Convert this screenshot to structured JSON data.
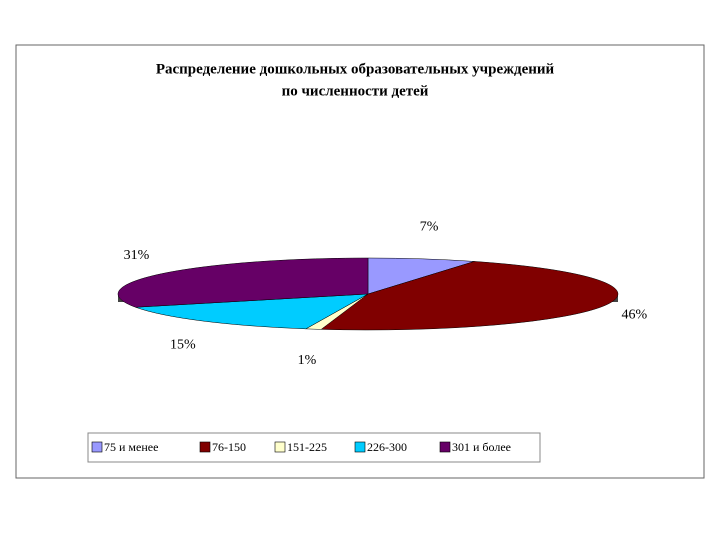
{
  "chart_data": {
    "type": "pie",
    "title": [
      "Распределение дошкольных образовательных учреждений",
      "по численности детей"
    ],
    "categories": [
      "75 и менее",
      "76-150",
      "151-225",
      "226-300",
      "301 и более"
    ],
    "values": [
      7,
      46,
      1,
      15,
      31
    ],
    "value_labels": [
      "7%",
      "46%",
      "1%",
      "15%",
      "31%"
    ],
    "colors": [
      "#9999ff",
      "#800000",
      "#ffffcc",
      "#00ccff",
      "#660066"
    ],
    "legend": "bottom"
  }
}
